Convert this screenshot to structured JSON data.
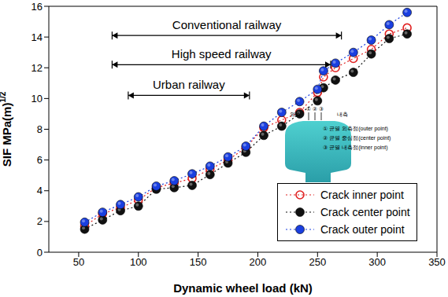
{
  "chart_data": {
    "type": "line",
    "x_label": "Dynamic wheel load (kN)",
    "y_label": "SIF MPa(m)",
    "y_label_superscript": "1/2",
    "x": [
      55,
      70,
      85,
      100,
      115,
      130,
      145,
      160,
      175,
      190,
      205,
      220,
      235,
      250,
      255,
      265,
      280,
      295,
      310,
      325
    ],
    "series": [
      {
        "name": "Crack inner point",
        "color": "#e02020",
        "marker": "open_circle",
        "line_style": "dotted",
        "values": [
          1.7,
          2.5,
          2.9,
          3.4,
          4.2,
          4.5,
          4.8,
          5.4,
          6.0,
          6.8,
          8.1,
          8.6,
          9.1,
          10.4,
          11.4,
          12.0,
          12.6,
          13.2,
          14.2,
          14.6
        ]
      },
      {
        "name": "Crack center point",
        "color": "#111111",
        "marker": "circle",
        "line_style": "dotted",
        "values": [
          1.5,
          2.1,
          2.7,
          3.0,
          4.1,
          4.2,
          4.35,
          5.05,
          5.8,
          6.5,
          7.6,
          8.2,
          9.0,
          9.85,
          10.7,
          11.2,
          11.7,
          12.9,
          13.9,
          14.2
        ]
      },
      {
        "name": "Crack outer point",
        "color": "#1a3fe0",
        "marker": "circle",
        "line_style": "dotted",
        "values": [
          1.95,
          2.6,
          3.1,
          3.6,
          4.3,
          4.65,
          5.1,
          5.6,
          6.2,
          6.9,
          8.2,
          9.1,
          9.8,
          10.6,
          11.8,
          12.3,
          13.0,
          13.8,
          14.8,
          15.6
        ]
      }
    ],
    "xlim": [
      25,
      350
    ],
    "xticks": [
      50,
      100,
      150,
      200,
      250,
      300,
      350
    ],
    "ylim": [
      0,
      16
    ],
    "yticks": [
      0,
      2,
      4,
      6,
      8,
      10,
      12,
      14,
      16
    ],
    "grid": false,
    "legend": "lower right",
    "annotations": [
      {
        "text": "Conventional railway",
        "x": [
          78,
          270
        ],
        "y": 14.1
      },
      {
        "text": "High speed railway",
        "x": [
          78,
          261
        ],
        "y": 12.2
      },
      {
        "text": "Urban railway",
        "x": [
          91.5,
          193
        ],
        "y": 10.2
      }
    ],
    "inset": {
      "outer_side": "외측",
      "inner_side": "내측",
      "markers": [
        "①",
        "②",
        "③"
      ],
      "points": [
        "① 균열 외측점(outer point)",
        "② 균열 중심점(center point)",
        "③ 균열 내측점(inner point)"
      ]
    }
  }
}
